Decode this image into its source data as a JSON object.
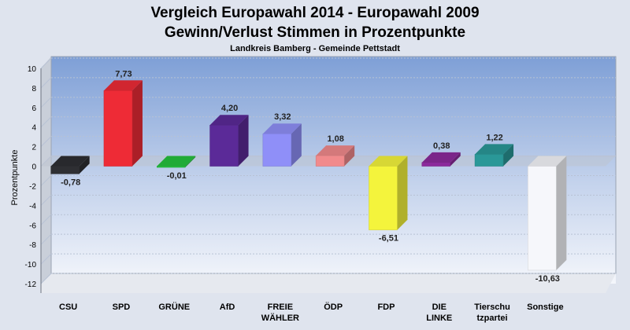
{
  "chart_data": {
    "type": "bar",
    "title": "Vergleich Europawahl 2014 - Europawahl 2009",
    "title2": "Gewinn/Verlust Stimmen in Prozentpunkte",
    "subtitle": "Landkreis Bamberg - Gemeinde Pettstadt",
    "ylabel": "Prozentpunkte",
    "ylim": [
      -12,
      10
    ],
    "yticks": [
      10,
      8,
      6,
      4,
      2,
      0,
      -2,
      -4,
      -6,
      -8,
      -10,
      -12
    ],
    "categories": [
      [
        "CSU"
      ],
      [
        "SPD"
      ],
      [
        "GRÜNE"
      ],
      [
        "AfD"
      ],
      [
        "FREIE",
        "WÄHLER"
      ],
      [
        "ÖDP"
      ],
      [
        "FDP"
      ],
      [
        "DIE",
        "LINKE"
      ],
      [
        "Tierschu",
        "tzpartei"
      ],
      [
        "Sonstige"
      ]
    ],
    "values": [
      -0.78,
      7.73,
      -0.01,
      4.2,
      3.32,
      1.08,
      -6.51,
      0.38,
      1.22,
      -10.63
    ],
    "value_labels": [
      "-0,78",
      "7,73",
      "-0,01",
      "4,20",
      "3,32",
      "1,08",
      "-6,51",
      "0,38",
      "1,22",
      "-10,63"
    ],
    "colors": [
      "#2e2f33",
      "#ee2b36",
      "#26c23f",
      "#5b2a98",
      "#8f8ff8",
      "#f18a8c",
      "#f4f43c",
      "#8c2a9c",
      "#2a9898",
      "#f6f7fb"
    ],
    "grid": true
  }
}
